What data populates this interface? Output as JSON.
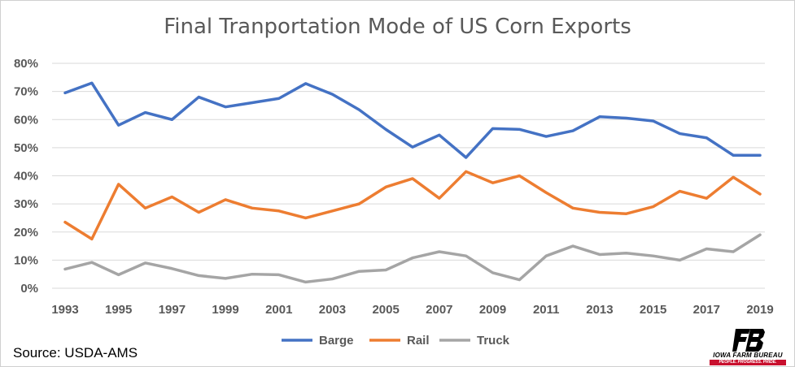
{
  "chart_data": {
    "type": "line",
    "title": "Final Tranportation Mode of US Corn Exports",
    "x": [
      1993,
      1994,
      1995,
      1996,
      1997,
      1998,
      1999,
      2000,
      2001,
      2002,
      2003,
      2004,
      2005,
      2006,
      2007,
      2008,
      2009,
      2010,
      2011,
      2012,
      2013,
      2014,
      2015,
      2016,
      2017,
      2018,
      2019
    ],
    "x_tick_labels": [
      "1993",
      "1995",
      "1997",
      "1999",
      "2001",
      "2003",
      "2005",
      "2007",
      "2009",
      "2011",
      "2013",
      "2015",
      "2017",
      "2019"
    ],
    "y_tick_labels": [
      "0%",
      "10%",
      "20%",
      "30%",
      "40%",
      "50%",
      "60%",
      "70%",
      "80%"
    ],
    "ylim": [
      0,
      80
    ],
    "y_unit": "%",
    "grid": "horizontal",
    "legend_position": "bottom",
    "series": [
      {
        "name": "Barge",
        "color": "#4472c4",
        "values": [
          69.5,
          73,
          58,
          62.5,
          60,
          68,
          64.5,
          66,
          67.5,
          72.8,
          69,
          63.5,
          56.5,
          50.2,
          54.5,
          46.5,
          56.8,
          56.5,
          54,
          56,
          61,
          60.5,
          59.5,
          55,
          53.5,
          47.3,
          47.3
        ]
      },
      {
        "name": "Rail",
        "color": "#ed7d31",
        "values": [
          23.5,
          17.5,
          37,
          28.5,
          32.5,
          27,
          31.5,
          28.5,
          27.5,
          25,
          27.5,
          30,
          36,
          39,
          32,
          41.5,
          37.5,
          40,
          34,
          28.5,
          27,
          26.5,
          29,
          34.5,
          32,
          39.5,
          33.5
        ]
      },
      {
        "name": "Truck",
        "color": "#a5a5a5",
        "values": [
          6.8,
          9.2,
          4.8,
          9,
          7,
          4.5,
          3.5,
          5,
          4.8,
          2.2,
          3.3,
          6,
          6.5,
          10.8,
          13,
          11.5,
          5.5,
          3,
          11.5,
          15,
          12,
          12.5,
          11.5,
          10,
          14,
          13,
          19
        ]
      }
    ]
  },
  "footer": {
    "source": "Source: USDA-AMS"
  },
  "logo": {
    "name": "IOWA FARM BUREAU",
    "tagline": "PEOPLE. PROGRESS. PRIDE."
  }
}
